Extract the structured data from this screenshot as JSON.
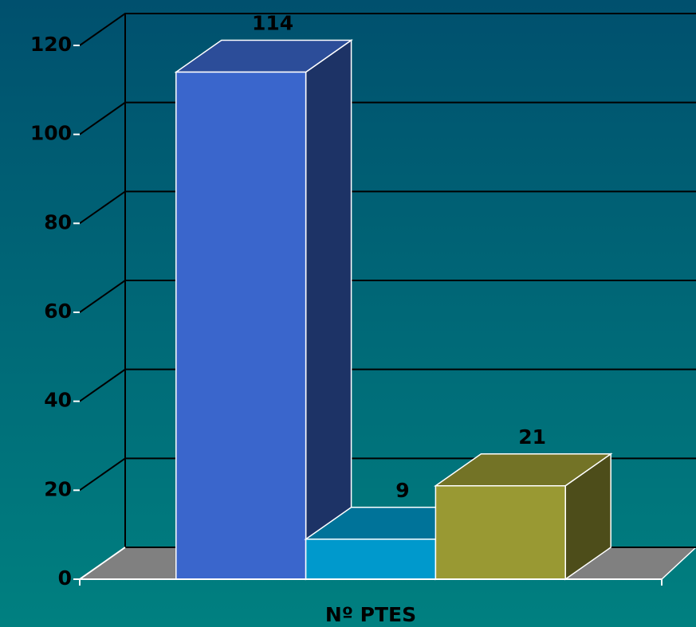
{
  "chart_data": {
    "type": "bar3d",
    "categories": [
      "Nº PTES"
    ],
    "series": [
      {
        "color": "#3a66cc",
        "values": [
          114
        ]
      },
      {
        "color": "#0099cc",
        "values": [
          9
        ]
      },
      {
        "color": "#999933",
        "values": [
          21
        ]
      }
    ],
    "ylim": [
      0,
      120
    ],
    "yticks": [
      0,
      20,
      40,
      60,
      80,
      100,
      120
    ],
    "grid": true
  }
}
